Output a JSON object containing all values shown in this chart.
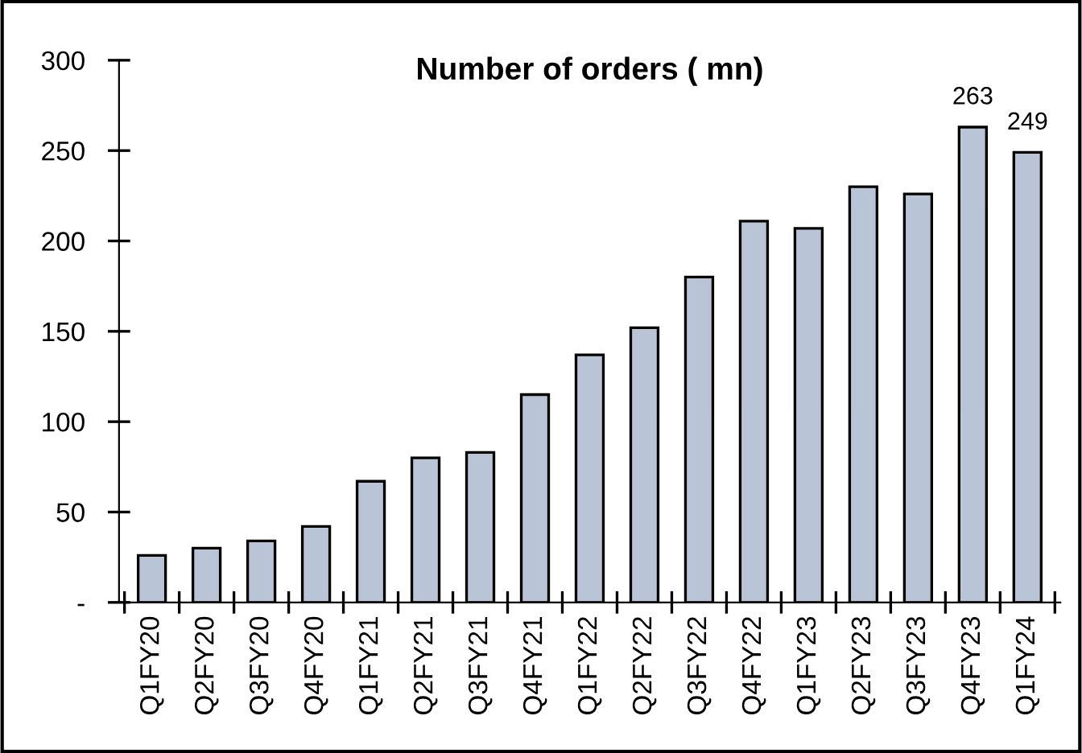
{
  "chart_data": {
    "type": "bar",
    "title": "Number of orders ( mn)",
    "categories": [
      "Q1FY20",
      "Q2FY20",
      "Q3FY20",
      "Q4FY20",
      "Q1FY21",
      "Q2FY21",
      "Q3FY21",
      "Q4FY21",
      "Q1FY22",
      "Q2FY22",
      "Q3FY22",
      "Q4FY22",
      "Q1FY23",
      "Q2FY23",
      "Q3FY23",
      "Q4FY23",
      "Q1FY24"
    ],
    "values": [
      26,
      30,
      34,
      42,
      67,
      80,
      83,
      115,
      137,
      152,
      180,
      211,
      207,
      230,
      226,
      263,
      249
    ],
    "value_labels": [
      null,
      null,
      null,
      null,
      null,
      null,
      null,
      null,
      null,
      null,
      null,
      null,
      null,
      null,
      null,
      "263",
      "249"
    ],
    "color": "#b9c4d6",
    "ylim": [
      0,
      300
    ],
    "yticks": [
      {
        "value": 0,
        "label": "-"
      },
      50,
      100,
      150,
      200,
      250,
      300
    ],
    "grid": false
  }
}
